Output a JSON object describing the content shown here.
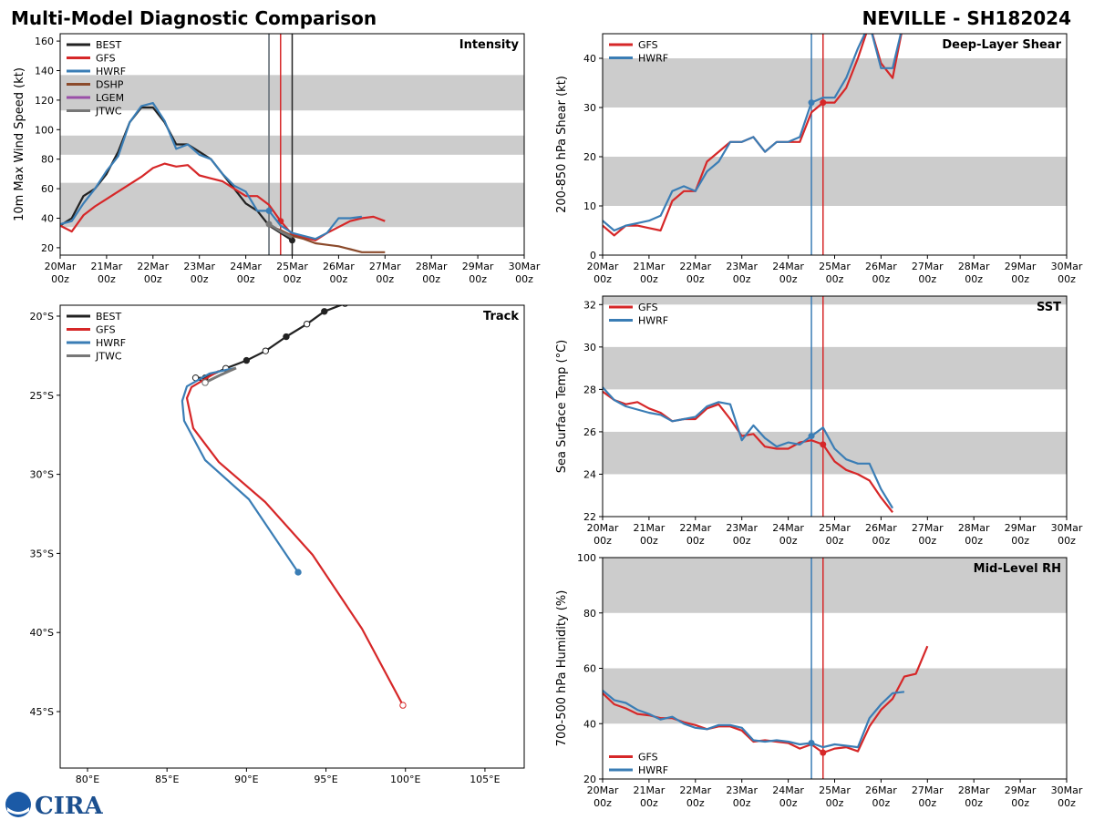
{
  "title": "Multi-Model Diagnostic Comparison",
  "storm": "NEVILLE - SH182024",
  "logo": "CIRA",
  "chart_data": [
    {
      "type": "line",
      "title": "Intensity",
      "ylabel": "10m Max Wind Speed (kt)",
      "legend": "upper left",
      "xlim": [
        0,
        10
      ],
      "xticks": [
        {
          "value": 0,
          "label": "20Mar\n00z"
        },
        {
          "value": 1,
          "label": "21Mar\n00z"
        },
        {
          "value": 2,
          "label": "22Mar\n00z"
        },
        {
          "value": 3,
          "label": "23Mar\n00z"
        },
        {
          "value": 4,
          "label": "24Mar\n00z"
        },
        {
          "value": 5,
          "label": "25Mar\n00z"
        },
        {
          "value": 6,
          "label": "26Mar\n00z"
        },
        {
          "value": 7,
          "label": "27Mar\n00z"
        },
        {
          "value": 8,
          "label": "28Mar\n00z"
        },
        {
          "value": 9,
          "label": "29Mar\n00z"
        },
        {
          "value": 10,
          "label": "30Mar\n00z"
        }
      ],
      "ylim": [
        15,
        165
      ],
      "yticks": [
        20,
        40,
        60,
        80,
        100,
        120,
        140,
        160
      ],
      "bands": [
        [
          34,
          64
        ],
        [
          83,
          96
        ],
        [
          113,
          137
        ]
      ],
      "series": [
        {
          "name": "BEST",
          "color": "#222222",
          "init": 5,
          "x": [
            0,
            0.25,
            0.5,
            0.75,
            1,
            1.25,
            1.5,
            1.75,
            2,
            2.25,
            2.5,
            2.75,
            3,
            3.25,
            3.5,
            3.75,
            4,
            4.25,
            4.5,
            4.75,
            5
          ],
          "values": [
            35,
            40,
            55,
            60,
            70,
            85,
            105,
            115,
            115,
            105,
            90,
            90,
            85,
            80,
            70,
            60,
            50,
            45,
            35,
            30,
            25
          ]
        },
        {
          "name": "GFS",
          "color": "#d62728",
          "init": 4.75,
          "x": [
            0,
            0.25,
            0.5,
            0.75,
            1,
            1.25,
            1.5,
            1.75,
            2,
            2.25,
            2.5,
            2.75,
            3,
            3.25,
            3.5,
            3.75,
            4,
            4.25,
            4.5,
            4.75,
            5,
            5.25,
            5.5,
            5.75,
            6,
            6.25,
            6.5,
            6.75,
            7
          ],
          "values": [
            35,
            31,
            42,
            48,
            53,
            58,
            63,
            68,
            74,
            77,
            75,
            76,
            69,
            67,
            65,
            60,
            55,
            55,
            49,
            38,
            29,
            27,
            25,
            30,
            34,
            38,
            40,
            41,
            38
          ]
        },
        {
          "name": "HWRF",
          "color": "#3a7db5",
          "init": 4.5,
          "x": [
            0,
            0.25,
            0.5,
            0.75,
            1,
            1.25,
            1.5,
            1.75,
            2,
            2.25,
            2.5,
            2.75,
            3,
            3.25,
            3.5,
            3.75,
            4,
            4.25,
            4.5,
            4.75,
            5,
            5.25,
            5.5,
            5.75,
            6,
            6.25,
            6.5
          ],
          "values": [
            36,
            38,
            50,
            60,
            72,
            82,
            105,
            116,
            118,
            106,
            87,
            90,
            83,
            80,
            70,
            62,
            58,
            45,
            45,
            35,
            30,
            28,
            26,
            30,
            40,
            40,
            41
          ]
        },
        {
          "name": "DSHP",
          "color": "#8b4a2b",
          "x": [
            4.5,
            4.75,
            5,
            5.25,
            5.5,
            5.75,
            6,
            6.25,
            6.5,
            6.75,
            7
          ],
          "values": [
            35,
            32,
            28,
            26,
            23,
            22,
            21,
            19,
            17,
            17,
            17
          ]
        },
        {
          "name": "LGEM",
          "color": "#9a4fa8",
          "x": [],
          "values": []
        },
        {
          "name": "JTWC",
          "color": "#777777",
          "init": 4.5,
          "x": [
            4.5,
            4.75,
            5
          ],
          "values": [
            36,
            31,
            27
          ]
        }
      ]
    },
    {
      "type": "line",
      "title": "Deep-Layer Shear",
      "ylabel": "200-850 hPa Shear (kt)",
      "legend": "upper left",
      "xlim": [
        0,
        10
      ],
      "xticks": [
        {
          "value": 0,
          "label": "20Mar\n00z"
        },
        {
          "value": 1,
          "label": "21Mar\n00z"
        },
        {
          "value": 2,
          "label": "22Mar\n00z"
        },
        {
          "value": 3,
          "label": "23Mar\n00z"
        },
        {
          "value": 4,
          "label": "24Mar\n00z"
        },
        {
          "value": 5,
          "label": "25Mar\n00z"
        },
        {
          "value": 6,
          "label": "26Mar\n00z"
        },
        {
          "value": 7,
          "label": "27Mar\n00z"
        },
        {
          "value": 8,
          "label": "28Mar\n00z"
        },
        {
          "value": 9,
          "label": "29Mar\n00z"
        },
        {
          "value": 10,
          "label": "30Mar\n00z"
        }
      ],
      "ylim": [
        0,
        45
      ],
      "yticks": [
        0,
        10,
        20,
        30,
        40
      ],
      "bands": [
        [
          10,
          20
        ],
        [
          30,
          40
        ]
      ],
      "series": [
        {
          "name": "GFS",
          "color": "#d62728",
          "init": 4.75,
          "x": [
            0,
            0.25,
            0.5,
            0.75,
            1,
            1.25,
            1.5,
            1.75,
            2,
            2.25,
            2.5,
            2.75,
            3,
            3.25,
            3.5,
            3.75,
            4,
            4.25,
            4.5,
            4.75,
            5,
            5.25,
            5.5,
            5.75,
            6,
            6.25,
            6.5
          ],
          "values": [
            6,
            4,
            6,
            6,
            5.5,
            5,
            11,
            13,
            13,
            19,
            21,
            23,
            23,
            24,
            21,
            23,
            23,
            23,
            29,
            31,
            31,
            34,
            40,
            47,
            39,
            36,
            48
          ]
        },
        {
          "name": "HWRF",
          "color": "#3a7db5",
          "init": 4.5,
          "x": [
            0,
            0.25,
            0.5,
            0.75,
            1,
            1.25,
            1.5,
            1.75,
            2,
            2.25,
            2.5,
            2.75,
            3,
            3.25,
            3.5,
            3.75,
            4,
            4.25,
            4.5,
            4.75,
            5,
            5.25,
            5.5,
            5.75,
            6,
            6.25,
            6.5
          ],
          "values": [
            7,
            5,
            6,
            6.5,
            7,
            8,
            13,
            14,
            13,
            17,
            19,
            23,
            23,
            24,
            21,
            23,
            23,
            24,
            31,
            32,
            32,
            36,
            42,
            47,
            38,
            38,
            48
          ]
        }
      ]
    },
    {
      "type": "track",
      "title": "Track",
      "legend": "upper left",
      "xlim": [
        78.28,
        107.47
      ],
      "xticks": [
        {
          "value": 80,
          "label": "80°E"
        },
        {
          "value": 85,
          "label": "85°E"
        },
        {
          "value": 90,
          "label": "90°E"
        },
        {
          "value": 95,
          "label": "95°E"
        },
        {
          "value": 100,
          "label": "100°E"
        },
        {
          "value": 105,
          "label": "105°E"
        }
      ],
      "ylim": [
        -48.57,
        -19.31
      ],
      "yticks": [
        {
          "value": -20,
          "label": "20°S"
        },
        {
          "value": -25,
          "label": "25°S"
        },
        {
          "value": -30,
          "label": "30°S"
        },
        {
          "value": -35,
          "label": "35°S"
        },
        {
          "value": -40,
          "label": "40°S"
        },
        {
          "value": -45,
          "label": "45°S"
        }
      ],
      "series": [
        {
          "name": "BEST",
          "color": "#222222",
          "markers": true,
          "x": [
            96.2,
            94.9,
            93.8,
            92.5,
            91.2,
            90.0,
            88.7,
            87.4,
            86.8,
            87.4
          ],
          "values": [
            -19.2,
            -19.7,
            -20.5,
            -21.3,
            -22.2,
            -22.8,
            -23.3,
            -23.9,
            -23.9,
            -24.2
          ]
        },
        {
          "name": "GFS",
          "color": "#d62728",
          "x": [
            88.26,
            86.54,
            86.25,
            86.65,
            88.26,
            91.18,
            94.16,
            97.26,
            99.84
          ],
          "values": [
            -23.46,
            -24.49,
            -25.18,
            -27.09,
            -29.22,
            -31.75,
            -35.09,
            -39.76,
            -44.6
          ]
        },
        {
          "name": "HWRF",
          "color": "#3a7db5",
          "x": [
            89.29,
            87.68,
            86.25,
            85.96,
            86.08,
            87.4,
            90.15,
            93.25
          ],
          "values": [
            -23.28,
            -23.63,
            -24.44,
            -25.36,
            -26.62,
            -29.1,
            -31.58,
            -36.19
          ]
        },
        {
          "name": "JTWC",
          "color": "#777777",
          "x": [
            89.35,
            88.4,
            87.4
          ],
          "values": [
            -23.28,
            -23.7,
            -24.2
          ]
        }
      ]
    },
    {
      "type": "line",
      "title": "SST",
      "ylabel": "Sea Surface Temp (°C)",
      "legend": "upper left",
      "xlim": [
        0,
        10
      ],
      "xticks": [
        {
          "value": 0,
          "label": "20Mar\n00z"
        },
        {
          "value": 1,
          "label": "21Mar\n00z"
        },
        {
          "value": 2,
          "label": "22Mar\n00z"
        },
        {
          "value": 3,
          "label": "23Mar\n00z"
        },
        {
          "value": 4,
          "label": "24Mar\n00z"
        },
        {
          "value": 5,
          "label": "25Mar\n00z"
        },
        {
          "value": 6,
          "label": "26Mar\n00z"
        },
        {
          "value": 7,
          "label": "27Mar\n00z"
        },
        {
          "value": 8,
          "label": "28Mar\n00z"
        },
        {
          "value": 9,
          "label": "29Mar\n00z"
        },
        {
          "value": 10,
          "label": "30Mar\n00z"
        }
      ],
      "ylim": [
        22,
        32.4
      ],
      "yticks": [
        22,
        24,
        26,
        28,
        30,
        32
      ],
      "bands": [
        [
          24,
          26
        ],
        [
          28,
          30
        ],
        [
          32,
          34
        ]
      ],
      "series": [
        {
          "name": "GFS",
          "color": "#d62728",
          "init": 4.75,
          "x": [
            0,
            0.25,
            0.5,
            0.75,
            1,
            1.25,
            1.5,
            1.75,
            2,
            2.25,
            2.5,
            2.75,
            3,
            3.25,
            3.5,
            3.75,
            4,
            4.25,
            4.5,
            4.75,
            5,
            5.25,
            5.5,
            5.75,
            6,
            6.25
          ],
          "values": [
            27.9,
            27.5,
            27.3,
            27.4,
            27.1,
            26.9,
            26.5,
            26.6,
            26.6,
            27.1,
            27.3,
            26.6,
            25.8,
            25.9,
            25.3,
            25.2,
            25.2,
            25.5,
            25.6,
            25.4,
            24.6,
            24.2,
            24.0,
            23.7,
            22.9,
            22.2
          ]
        },
        {
          "name": "HWRF",
          "color": "#3a7db5",
          "init": 4.5,
          "x": [
            0,
            0.25,
            0.5,
            0.75,
            1,
            1.25,
            1.5,
            1.75,
            2,
            2.25,
            2.5,
            2.75,
            3,
            3.25,
            3.5,
            3.75,
            4,
            4.25,
            4.5,
            4.75,
            5,
            5.25,
            5.5,
            5.75,
            6,
            6.25
          ],
          "values": [
            28.1,
            27.5,
            27.2,
            27.05,
            26.9,
            26.8,
            26.5,
            26.6,
            26.7,
            27.2,
            27.4,
            27.3,
            25.6,
            26.3,
            25.7,
            25.3,
            25.5,
            25.4,
            25.8,
            26.2,
            25.2,
            24.7,
            24.5,
            24.5,
            23.3,
            22.4
          ]
        }
      ]
    },
    {
      "type": "line",
      "title": "Mid-Level RH",
      "ylabel": "700-500 hPa Humidity (%)",
      "legend": "lower left",
      "xlim": [
        0,
        10
      ],
      "xticks": [
        {
          "value": 0,
          "label": "20Mar\n00z"
        },
        {
          "value": 1,
          "label": "21Mar\n00z"
        },
        {
          "value": 2,
          "label": "22Mar\n00z"
        },
        {
          "value": 3,
          "label": "23Mar\n00z"
        },
        {
          "value": 4,
          "label": "24Mar\n00z"
        },
        {
          "value": 5,
          "label": "25Mar\n00z"
        },
        {
          "value": 6,
          "label": "26Mar\n00z"
        },
        {
          "value": 7,
          "label": "27Mar\n00z"
        },
        {
          "value": 8,
          "label": "28Mar\n00z"
        },
        {
          "value": 9,
          "label": "29Mar\n00z"
        },
        {
          "value": 10,
          "label": "30Mar\n00z"
        }
      ],
      "ylim": [
        20,
        100
      ],
      "yticks": [
        20,
        40,
        60,
        80,
        100
      ],
      "bands": [
        [
          40,
          60
        ],
        [
          80,
          100
        ]
      ],
      "series": [
        {
          "name": "GFS",
          "color": "#d62728",
          "init": 4.75,
          "x": [
            0,
            0.25,
            0.5,
            0.75,
            1,
            1.25,
            1.5,
            1.75,
            2,
            2.25,
            2.5,
            2.75,
            3,
            3.25,
            3.5,
            3.75,
            4,
            4.25,
            4.5,
            4.75,
            5,
            5.25,
            5.5,
            5.75,
            6,
            6.25,
            6.5,
            6.75,
            7
          ],
          "values": [
            51,
            47,
            45.5,
            43.5,
            43,
            42,
            42,
            40.5,
            39.5,
            38,
            39,
            39,
            37.5,
            33.5,
            34,
            33.5,
            33,
            31,
            32.5,
            29.5,
            31,
            31.5,
            30,
            39,
            45,
            49,
            57,
            58,
            68
          ]
        },
        {
          "name": "HWRF",
          "color": "#3a7db5",
          "init": 4.5,
          "x": [
            0,
            0.25,
            0.5,
            0.75,
            1,
            1.25,
            1.5,
            1.75,
            2,
            2.25,
            2.5,
            2.75,
            3,
            3.25,
            3.5,
            3.75,
            4,
            4.25,
            4.5,
            4.75,
            5,
            5.25,
            5.5,
            5.75,
            6,
            6.25,
            6.5
          ],
          "values": [
            52,
            48.5,
            47.5,
            45,
            43.5,
            41.5,
            42.5,
            40,
            38.5,
            38,
            39.5,
            39.5,
            38.5,
            34,
            33.5,
            34,
            33.5,
            32.5,
            33,
            31.5,
            32.5,
            32,
            31.5,
            42,
            47,
            51,
            51.5
          ]
        }
      ]
    }
  ]
}
